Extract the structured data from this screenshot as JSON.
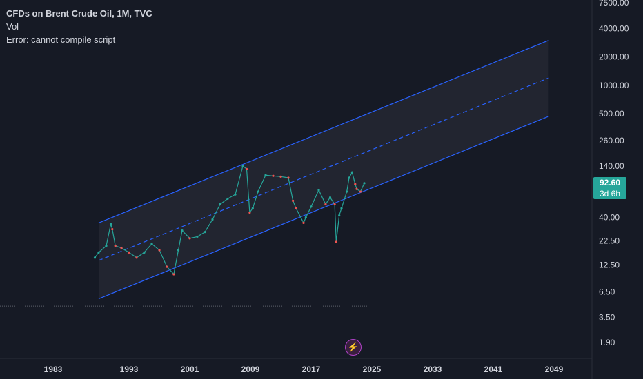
{
  "legend": {
    "title": "CFDs on Brent Crude Oil, 1M, TVC",
    "indicator": "Vol",
    "error": "Error: cannot compile script"
  },
  "colors": {
    "background": "#161a25",
    "channel": "#2962ff",
    "up": "#26a69a",
    "down": "#ef5350",
    "price_tag": "#26a69a"
  },
  "last_price": {
    "value": "92.60",
    "countdown": "3d 6h"
  },
  "chart_data": {
    "type": "line",
    "title": "CFDs on Brent Crude Oil, 1M, TVC",
    "xlabel": "",
    "ylabel": "",
    "y_scale": "log",
    "xlim": [
      1976,
      2054
    ],
    "ylim": [
      1.6,
      7500
    ],
    "grid": false,
    "y_ticks": [
      {
        "label": "7500.00",
        "value": 7500
      },
      {
        "label": "4000.00",
        "value": 4000
      },
      {
        "label": "2000.00",
        "value": 2000
      },
      {
        "label": "1000.00",
        "value": 1000
      },
      {
        "label": "500.00",
        "value": 500
      },
      {
        "label": "260.00",
        "value": 260
      },
      {
        "label": "140.00",
        "value": 140
      },
      {
        "label": "40.00",
        "value": 40
      },
      {
        "label": "22.50",
        "value": 22.5
      },
      {
        "label": "12.50",
        "value": 12.5
      },
      {
        "label": "6.50",
        "value": 6.5
      },
      {
        "label": "3.50",
        "value": 3.5
      },
      {
        "label": "1.90",
        "value": 1.9
      }
    ],
    "x_ticks": [
      {
        "label": "1983",
        "value": 1983
      },
      {
        "label": "1993",
        "value": 1993
      },
      {
        "label": "2001",
        "value": 2001
      },
      {
        "label": "2009",
        "value": 2009
      },
      {
        "label": "2017",
        "value": 2017
      },
      {
        "label": "2025",
        "value": 2025
      },
      {
        "label": "2033",
        "value": 2033
      },
      {
        "label": "2041",
        "value": 2041
      },
      {
        "label": "2049",
        "value": 2049
      }
    ],
    "series": [
      {
        "x": [
          1988.5,
          1989,
          1990,
          1990.6,
          1990.8,
          1991.2,
          1992,
          1993,
          1994,
          1995,
          1996,
          1997,
          1998,
          1998.9,
          1999.5,
          2000,
          2001,
          2002,
          2003,
          2004,
          2005,
          2006,
          2007,
          2008,
          2008.5,
          2008.9,
          2009.3,
          2010,
          2011,
          2012,
          2013,
          2014,
          2014.6,
          2015,
          2016,
          2016.3,
          2017,
          2018,
          2018.9,
          2019.5,
          2020.1,
          2020.3,
          2020.7,
          2021,
          2021.7,
          2022,
          2022.4,
          2022.8,
          2023,
          2023.5,
          2024
        ],
        "y": [
          15,
          17,
          20,
          34,
          30,
          20,
          19,
          17,
          15,
          17,
          21,
          18,
          12,
          10,
          18,
          29,
          24,
          25,
          28,
          38,
          55,
          63,
          70,
          140,
          130,
          45,
          50,
          75,
          112,
          110,
          108,
          105,
          60,
          50,
          35,
          40,
          52,
          78,
          55,
          65,
          55,
          22,
          42,
          50,
          75,
          105,
          120,
          90,
          80,
          75,
          92
        ]
      }
    ],
    "channel": {
      "start_x": 1989,
      "end_x": 2048.3,
      "upper": [
        35,
        3000
      ],
      "middle": [
        14,
        1200
      ],
      "lower": [
        5.5,
        470
      ]
    },
    "reference_line": 4.6,
    "last_price": 92.6
  }
}
